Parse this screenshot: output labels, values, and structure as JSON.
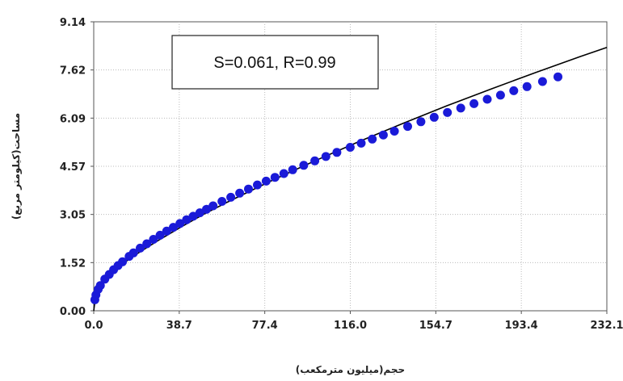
{
  "chart_data": {
    "type": "scatter",
    "title": "",
    "xlabel": "حجم(میلیون مترمکعب)",
    "ylabel": "مساحت(کیلومتر مربع)",
    "x_ticks": [
      "0.0",
      "38.7",
      "77.4",
      "116.0",
      "154.7",
      "193.4",
      "232.1"
    ],
    "y_ticks": [
      "0.00",
      "1.52",
      "3.05",
      "4.57",
      "6.09",
      "7.62",
      "9.14"
    ],
    "xlim": [
      0,
      232.1
    ],
    "ylim": [
      0,
      9.14
    ],
    "grid": true,
    "annotation": "S=0.061, R=0.99",
    "colors": {
      "points": "#1a1ad8",
      "fit_line": "#000000",
      "grid": "#bbbbbb"
    },
    "series": [
      {
        "type": "scatter",
        "x": [
          0.5,
          1,
          2,
          3,
          5,
          7,
          9,
          11,
          13,
          16,
          18,
          21,
          24,
          27,
          30,
          33,
          36,
          39,
          42,
          45,
          48,
          51,
          54,
          58,
          62,
          66,
          70,
          74,
          78,
          82,
          86,
          90,
          95,
          100,
          105,
          110,
          116,
          121,
          126,
          131,
          136,
          142,
          148,
          154,
          160,
          166,
          172,
          178,
          184,
          190,
          196,
          203,
          210
        ],
        "y": [
          0.35,
          0.5,
          0.68,
          0.8,
          1.0,
          1.15,
          1.3,
          1.43,
          1.55,
          1.72,
          1.83,
          1.98,
          2.12,
          2.26,
          2.39,
          2.52,
          2.64,
          2.76,
          2.88,
          2.99,
          3.1,
          3.21,
          3.32,
          3.46,
          3.59,
          3.72,
          3.85,
          3.98,
          4.1,
          4.22,
          4.34,
          4.46,
          4.6,
          4.74,
          4.88,
          5.01,
          5.17,
          5.3,
          5.43,
          5.56,
          5.68,
          5.83,
          5.98,
          6.12,
          6.27,
          6.41,
          6.55,
          6.69,
          6.82,
          6.96,
          7.09,
          7.25,
          7.4
        ]
      },
      {
        "type": "line",
        "x": [
          0,
          1,
          3,
          6,
          10,
          15,
          20,
          30,
          40,
          50,
          60,
          80,
          100,
          120,
          140,
          160,
          180,
          200,
          220,
          232.1
        ],
        "y": [
          0.0,
          0.55,
          0.8,
          1.05,
          1.3,
          1.58,
          1.82,
          2.26,
          2.67,
          3.06,
          3.42,
          4.1,
          4.74,
          5.35,
          5.93,
          6.49,
          7.02,
          7.54,
          8.04,
          8.33
        ]
      }
    ]
  }
}
